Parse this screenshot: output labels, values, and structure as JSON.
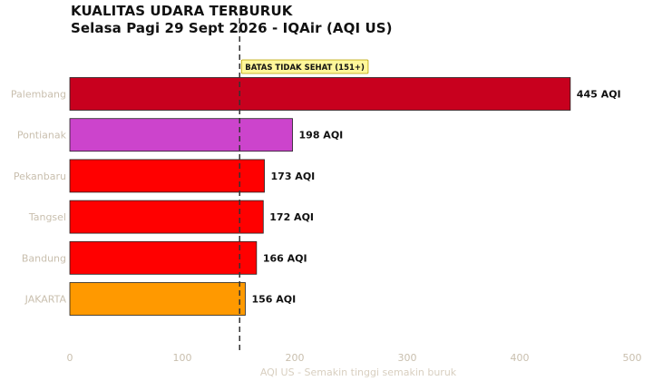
{
  "chart_data": {
    "type": "bar",
    "orientation": "horizontal",
    "title": "KUALITAS UDARA TERBURUK",
    "subtitle": "Selasa Pagi 29 Sept 2026 - IQAir (AQI US)",
    "xlabel": "AQI US - Semakin tinggi semakin buruk",
    "ylabel": "",
    "xlim": [
      0,
      500
    ],
    "xticks": [
      0,
      100,
      200,
      300,
      400,
      500
    ],
    "grid": false,
    "categories": [
      "Palembang",
      "Pontianak",
      "Pekanbaru",
      "Tangsel",
      "Bandung",
      "JAKARTA"
    ],
    "values": [
      445,
      198,
      173,
      172,
      166,
      156
    ],
    "value_labels": [
      "445 AQI",
      "198 AQI",
      "173 AQI",
      "172 AQI",
      "166 AQI",
      "156 AQI"
    ],
    "bar_colors": [
      "#c8001e",
      "#cc44cc",
      "#ff0000",
      "#ff0000",
      "#ff0000",
      "#ff9900"
    ],
    "threshold": {
      "value": 151,
      "label": "BATAS TIDAK SEHAT (151+)",
      "style": "dashed",
      "label_background": "#fff79a"
    }
  }
}
